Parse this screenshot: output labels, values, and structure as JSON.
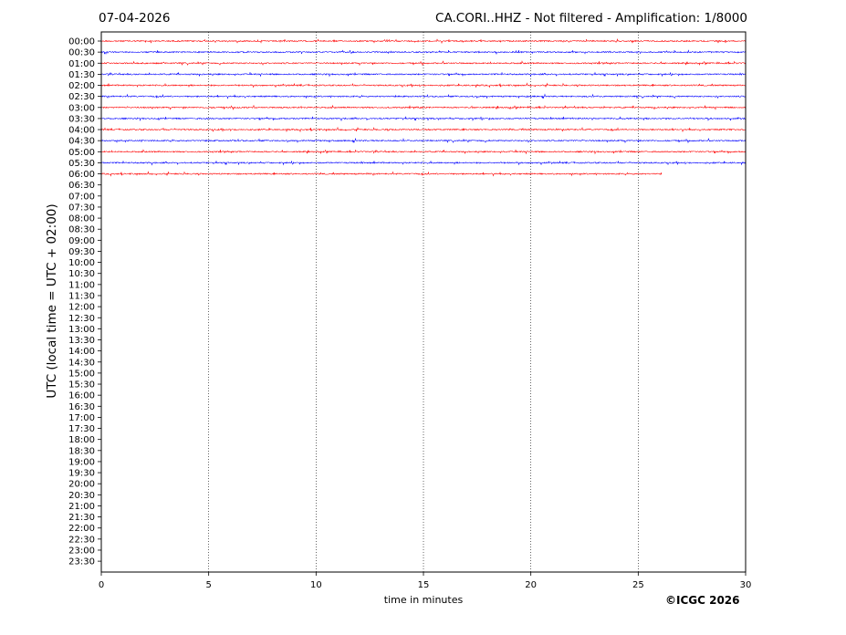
{
  "header": {
    "date": "07-04-2026",
    "title": "CA.CORI..HHZ - Not filtered - Amplification: 1/8000"
  },
  "footer": {
    "copyright": "©ICGC 2026"
  },
  "chart_data": {
    "type": "line",
    "title": "CA.CORI..HHZ - Not filtered - Amplification: 1/8000",
    "xlabel": "time in minutes",
    "ylabel": "UTC (local time = UTC + 02:00)",
    "xlim": [
      0,
      30
    ],
    "x_ticks": [
      0,
      5,
      10,
      15,
      20,
      25,
      30
    ],
    "vertical_gridlines": [
      5,
      10,
      15,
      20,
      25
    ],
    "y_ticks": [
      "00:00",
      "00:30",
      "01:00",
      "01:30",
      "02:00",
      "02:30",
      "03:00",
      "03:30",
      "04:00",
      "04:30",
      "05:00",
      "05:30",
      "06:00",
      "06:30",
      "07:00",
      "07:30",
      "08:00",
      "08:30",
      "09:00",
      "09:30",
      "10:00",
      "10:30",
      "11:00",
      "11:30",
      "12:00",
      "12:30",
      "13:00",
      "13:30",
      "14:00",
      "14:30",
      "15:00",
      "15:30",
      "16:00",
      "16:30",
      "17:00",
      "17:30",
      "18:00",
      "18:30",
      "19:00",
      "19:30",
      "20:00",
      "20:30",
      "21:00",
      "21:30",
      "22:00",
      "22:30",
      "23:00",
      "23:30"
    ],
    "series_colors": [
      "#ff0000",
      "#0000ff"
    ],
    "traces": [
      {
        "row": "00:00",
        "color": "#ff0000",
        "end_minute": 30
      },
      {
        "row": "00:30",
        "color": "#0000ff",
        "end_minute": 30
      },
      {
        "row": "01:00",
        "color": "#ff0000",
        "end_minute": 30
      },
      {
        "row": "01:30",
        "color": "#0000ff",
        "end_minute": 30
      },
      {
        "row": "02:00",
        "color": "#ff0000",
        "end_minute": 30
      },
      {
        "row": "02:30",
        "color": "#0000ff",
        "end_minute": 30
      },
      {
        "row": "03:00",
        "color": "#ff0000",
        "end_minute": 30
      },
      {
        "row": "03:30",
        "color": "#0000ff",
        "end_minute": 30
      },
      {
        "row": "04:00",
        "color": "#ff0000",
        "end_minute": 30
      },
      {
        "row": "04:30",
        "color": "#0000ff",
        "end_minute": 30
      },
      {
        "row": "05:00",
        "color": "#ff0000",
        "end_minute": 30
      },
      {
        "row": "05:30",
        "color": "#0000ff",
        "end_minute": 30
      },
      {
        "row": "06:00",
        "color": "#ff0000",
        "end_minute": 26.1
      }
    ]
  }
}
